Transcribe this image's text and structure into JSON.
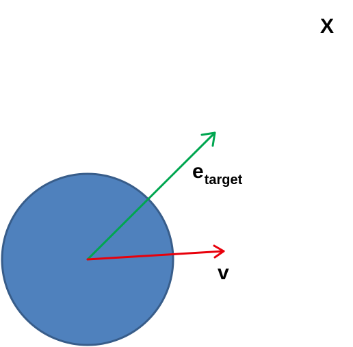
{
  "labels": {
    "target": "X",
    "target_vector_base": "e",
    "target_vector_sub": "target",
    "velocity": "v"
  },
  "colors": {
    "body_fill": "#4F81BD",
    "body_stroke": "#385D8A",
    "target_vector": "#00A650",
    "velocity_vector": "#E8000B"
  }
}
